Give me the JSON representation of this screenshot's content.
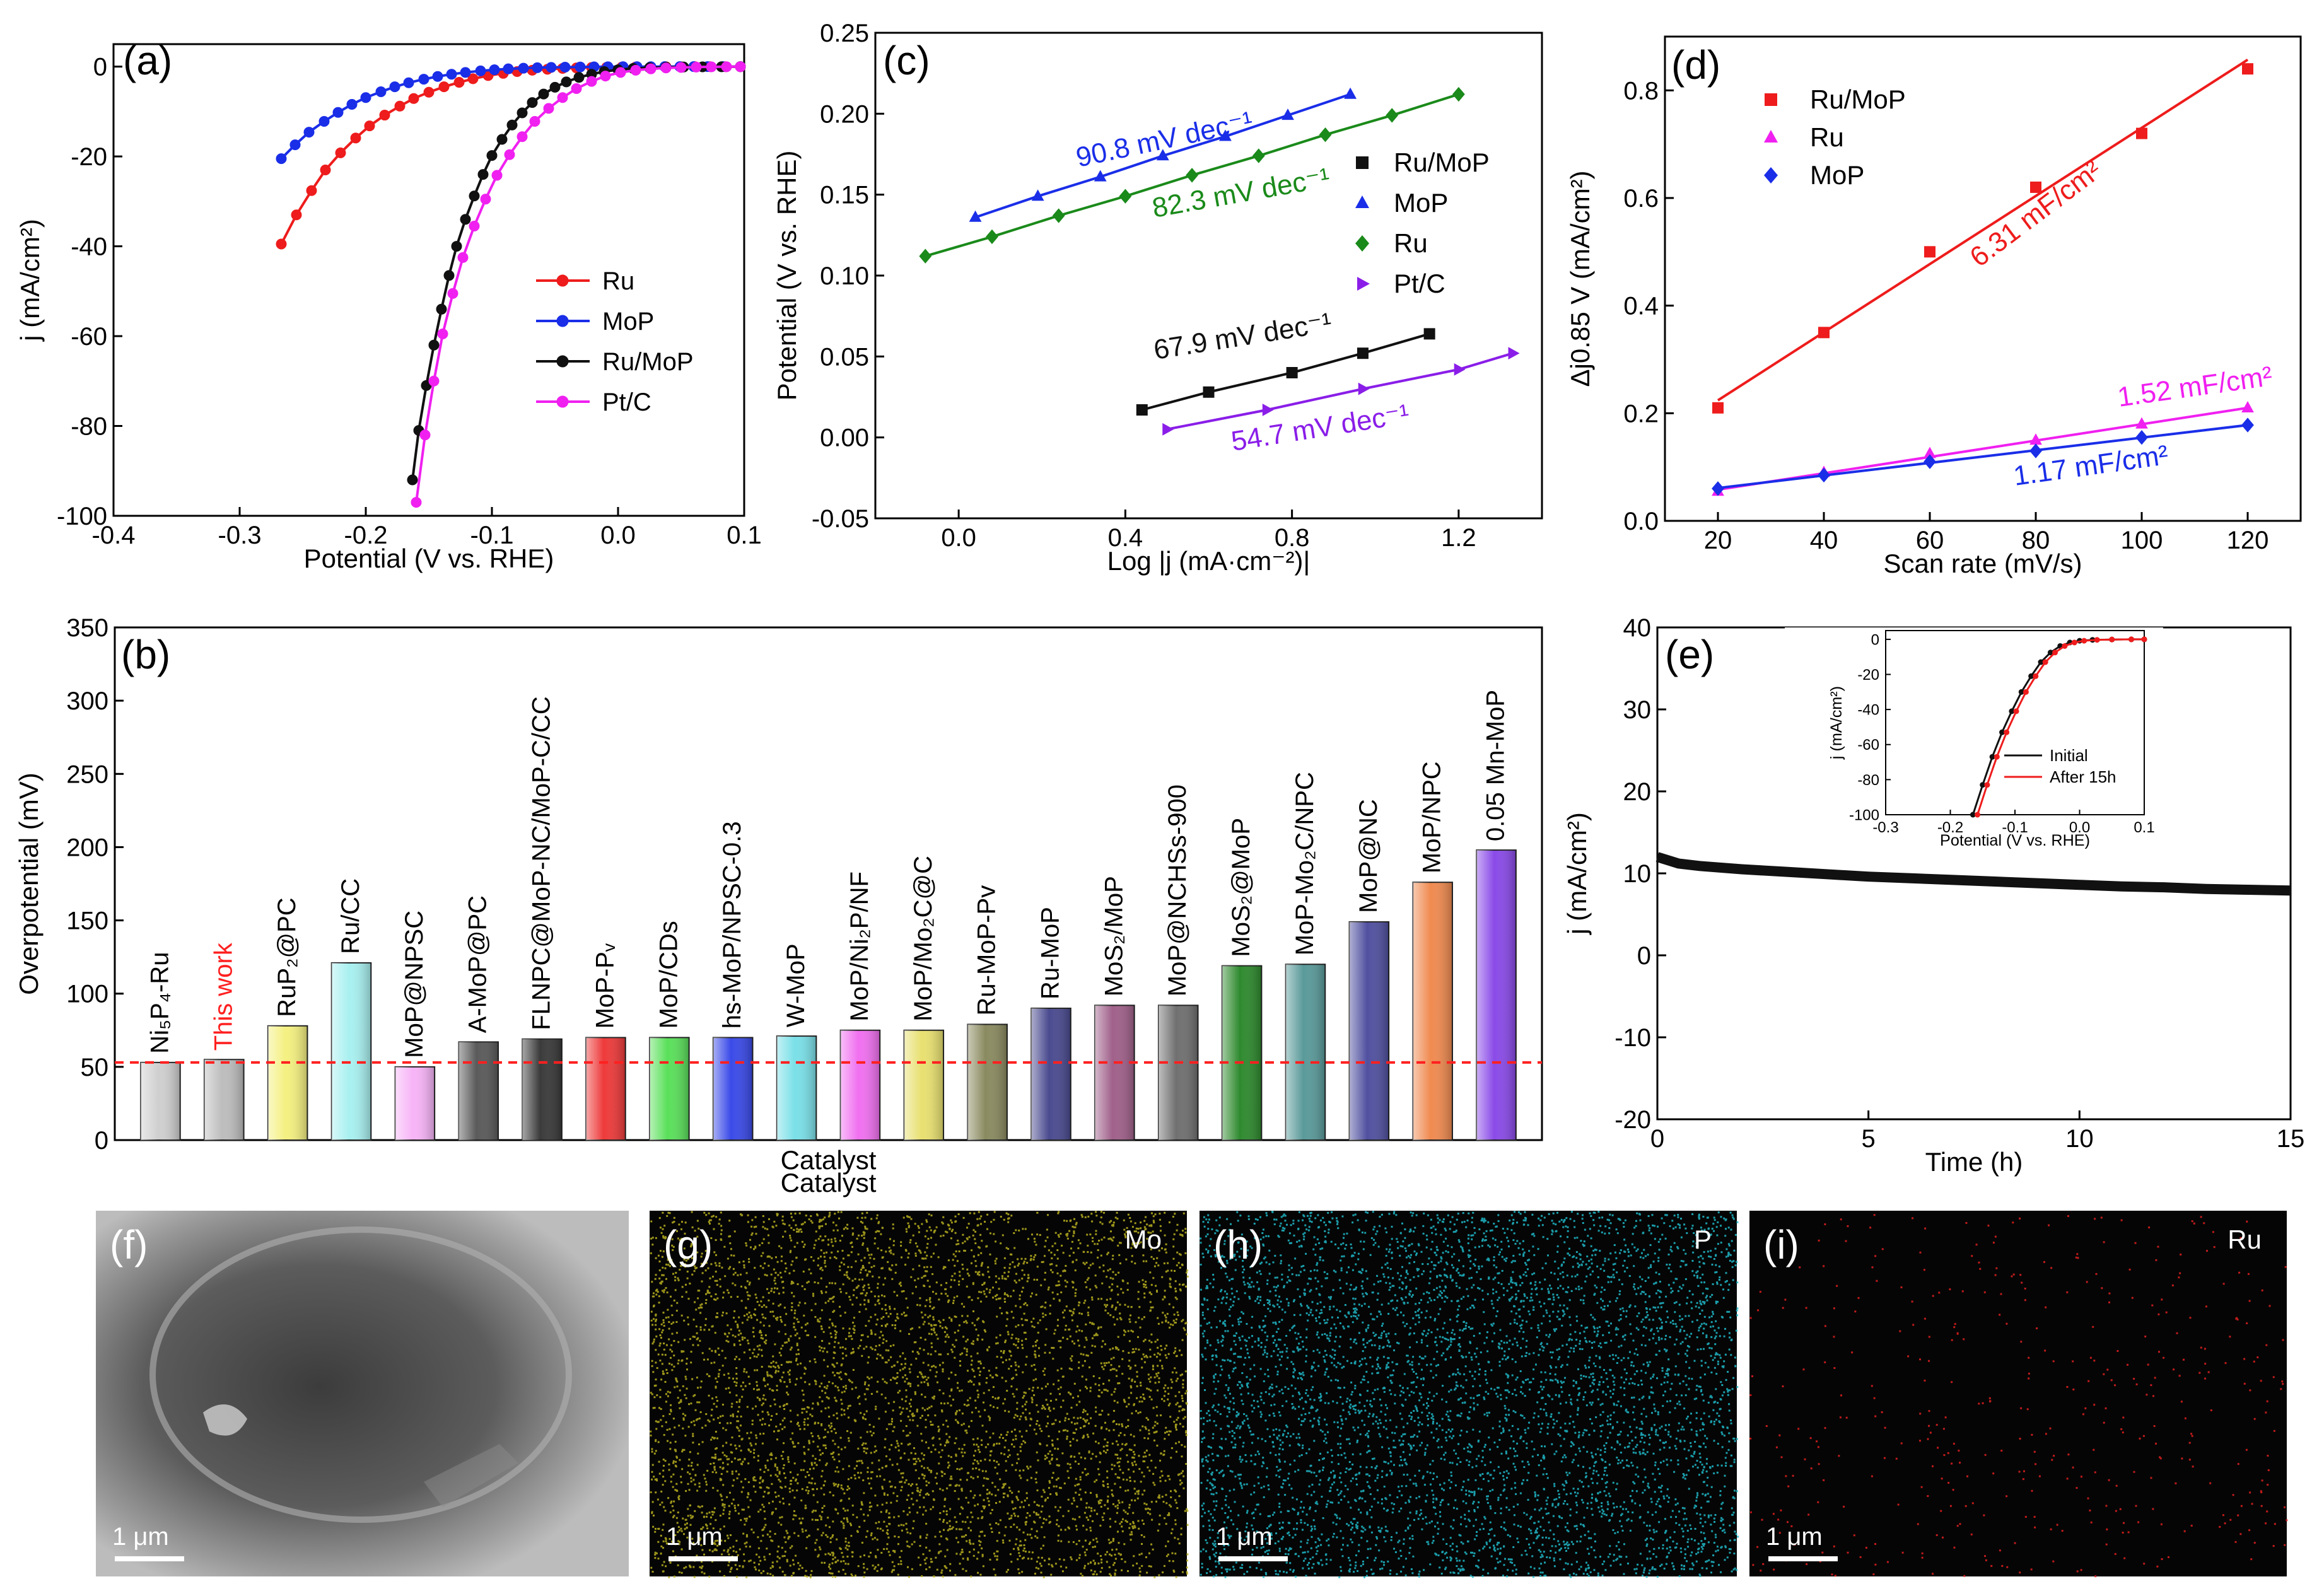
{
  "colors": {
    "red": "#ee1c1c",
    "blue": "#1a2ee8",
    "black": "#111111",
    "magenta": "#f020f0",
    "green": "#1a8a1a",
    "purple": "#8a1ee8",
    "refline": "#ff2020",
    "mo": "#b8b020",
    "p": "#20b8c8",
    "ru": "#e02020"
  },
  "chart_data": [
    {
      "id": "a",
      "type": "line",
      "panel_label": "(a)",
      "xlabel": "Potential (V vs. RHE)",
      "ylabel": "j (mA/cm²)",
      "xlim": [
        -0.4,
        0.1
      ],
      "ylim": [
        -100,
        5
      ],
      "xticks": [
        -0.4,
        -0.3,
        -0.2,
        -0.1,
        0.0,
        0.1
      ],
      "xtick_labels": [
        "-0.4",
        "-0.3",
        "-0.2",
        "-0.1",
        "0.0",
        "0.1"
      ],
      "yticks": [
        0,
        -20,
        -40,
        -60,
        -80,
        -100
      ],
      "ytick_labels": [
        "0",
        "-20",
        "-40",
        "-60",
        "-80",
        "-100"
      ],
      "legend": [
        "Ru",
        "MoP",
        "Ru/MoP",
        "Pt/C"
      ],
      "series": [
        {
          "name": "Ru",
          "color": "#ee1c1c",
          "x": [
            -0.267,
            -0.255,
            -0.243,
            -0.232,
            -0.22,
            -0.208,
            -0.197,
            -0.185,
            -0.173,
            -0.162,
            -0.15,
            -0.138,
            -0.126,
            -0.115,
            -0.103,
            -0.091,
            -0.08,
            -0.068,
            -0.056,
            -0.044,
            -0.033,
            -0.021,
            -0.009,
            0.003,
            0.014,
            0.026,
            0.038,
            0.05,
            0.061,
            0.073,
            0.085,
            0.097
          ],
          "y": [
            -39.5,
            -33.0,
            -27.6,
            -23.0,
            -19.2,
            -15.9,
            -13.2,
            -10.8,
            -8.8,
            -7.1,
            -5.7,
            -4.5,
            -3.5,
            -2.7,
            -2.0,
            -1.5,
            -1.1,
            -0.8,
            -0.6,
            -0.4,
            -0.3,
            -0.2,
            -0.15,
            -0.1,
            -0.08,
            -0.05,
            -0.04,
            -0.03,
            -0.02,
            -0.02,
            -0.01,
            -0.01
          ]
        },
        {
          "name": "MoP",
          "color": "#1a2ee8",
          "x": [
            -0.267,
            -0.256,
            -0.245,
            -0.233,
            -0.222,
            -0.211,
            -0.2,
            -0.188,
            -0.177,
            -0.166,
            -0.154,
            -0.143,
            -0.132,
            -0.121,
            -0.109,
            -0.098,
            -0.087,
            -0.075,
            -0.064,
            -0.053,
            -0.042,
            -0.03,
            -0.019,
            -0.008,
            0.004,
            0.015,
            0.026,
            0.037,
            0.049,
            0.06,
            0.071,
            0.083,
            0.097
          ],
          "y": [
            -20.5,
            -17.4,
            -14.6,
            -12.2,
            -10.2,
            -8.4,
            -6.9,
            -5.6,
            -4.5,
            -3.6,
            -2.8,
            -2.2,
            -1.7,
            -1.3,
            -0.95,
            -0.7,
            -0.5,
            -0.36,
            -0.25,
            -0.17,
            -0.12,
            -0.08,
            -0.05,
            -0.03,
            -0.02,
            -0.01,
            -0.01,
            0,
            0,
            0,
            0,
            0,
            0
          ]
        },
        {
          "name": "Ru/MoP",
          "color": "#111111",
          "x": [
            -0.163,
            -0.158,
            -0.152,
            -0.146,
            -0.14,
            -0.134,
            -0.128,
            -0.121,
            -0.114,
            -0.107,
            -0.1,
            -0.092,
            -0.084,
            -0.076,
            -0.068,
            -0.059,
            -0.05,
            -0.041,
            -0.031,
            -0.021,
            -0.011,
            0.0,
            0.012,
            0.025,
            0.038,
            0.052,
            0.067,
            0.082,
            0.097
          ],
          "y": [
            -92.0,
            -81.0,
            -71.0,
            -62.0,
            -54.0,
            -46.5,
            -40.0,
            -34.0,
            -28.8,
            -24.0,
            -19.8,
            -16.2,
            -13.0,
            -10.3,
            -8.0,
            -6.1,
            -4.6,
            -3.4,
            -2.4,
            -1.7,
            -1.1,
            -0.7,
            -0.4,
            -0.25,
            -0.15,
            -0.09,
            -0.05,
            -0.03,
            -0.01
          ]
        },
        {
          "name": "Pt/C",
          "color": "#f020f0",
          "x": [
            -0.16,
            -0.153,
            -0.146,
            -0.139,
            -0.131,
            -0.123,
            -0.114,
            -0.105,
            -0.096,
            -0.086,
            -0.076,
            -0.066,
            -0.055,
            -0.044,
            -0.033,
            -0.021,
            -0.01,
            0.002,
            0.014,
            0.026,
            0.038,
            0.05,
            0.062,
            0.074,
            0.086,
            0.097
          ],
          "y": [
            -97.0,
            -82.0,
            -70.0,
            -59.5,
            -50.5,
            -42.5,
            -35.5,
            -29.5,
            -24.2,
            -19.6,
            -15.6,
            -12.2,
            -9.3,
            -6.9,
            -4.9,
            -3.3,
            -2.1,
            -1.3,
            -0.8,
            -0.5,
            -0.3,
            -0.2,
            -0.1,
            -0.06,
            -0.03,
            -0.02
          ]
        }
      ]
    },
    {
      "id": "b",
      "type": "bar",
      "panel_label": "(b)",
      "xlabel": "Catalyst",
      "ylabel": "Overpotential (mV)",
      "ylim": [
        0,
        350
      ],
      "yticks": [
        0,
        50,
        100,
        150,
        200,
        250,
        300,
        350
      ],
      "ytick_labels": [
        "0",
        "50",
        "100",
        "150",
        "200",
        "250",
        "300",
        "350"
      ],
      "reference_line": 53,
      "categories": [
        "Ni₅P₄-Ru",
        "This work",
        "RuP₂@PC",
        "Ru/CC",
        "MoP@NPSC",
        "A-MoP@PC",
        "FLNPC@MoP-NC/MoP-C/CC",
        "MoP-Pᵥ",
        "MoP/CDs",
        "hs-MoP/NPSC-0.3",
        "W-MoP",
        "MoP/Ni₂P/NF",
        "MoP/Mo₂C@C",
        "Ru-MoP-Pv",
        "Ru-MoP",
        "MoS₂/MoP",
        "MoP@NCHSs-900",
        "MoS₂@MoP",
        "MoP-Mo₂C/NPC",
        "MoP@NC",
        "MoP/NPC",
        "0.05 Mn-MoP"
      ],
      "values": [
        53,
        55,
        78,
        121,
        50,
        67,
        69,
        70,
        70,
        70,
        71,
        75,
        75,
        79,
        90,
        92,
        92,
        119,
        120,
        149,
        176,
        198
      ],
      "bar_colors": [
        "#cfcfcf",
        "#bdbdbd",
        "#f4f080",
        "#a8f0f0",
        "#f7b4f7",
        "#5a5a5a",
        "#3a3a3a",
        "#ee3a3a",
        "#5ae05a",
        "#3a4ae8",
        "#7ae0e8",
        "#f070f0",
        "#e8e070",
        "#8a8a60",
        "#4a4a90",
        "#a0608a",
        "#707070",
        "#2e8a2e",
        "#5a9a9a",
        "#5050a0",
        "#f08a50",
        "#8a4ae8"
      ],
      "highlight_label_color": "#ff2020"
    },
    {
      "id": "c",
      "type": "line",
      "panel_label": "(c)",
      "xlabel": "Log |j (mA·cm⁻²)|",
      "ylabel": "Potential (V vs. RHE)",
      "xlim": [
        -0.2,
        1.4
      ],
      "ylim": [
        -0.05,
        0.25
      ],
      "xticks": [
        0.0,
        0.4,
        0.8,
        1.2
      ],
      "xtick_labels": [
        "0.0",
        "0.4",
        "0.8",
        "1.2"
      ],
      "yticks": [
        -0.05,
        0.0,
        0.05,
        0.1,
        0.15,
        0.2,
        0.25
      ],
      "ytick_labels": [
        "-0.05",
        "0.00",
        "0.05",
        "0.10",
        "0.15",
        "0.20",
        "0.25"
      ],
      "legend": [
        "Ru/MoP",
        "MoP",
        "Ru",
        "Pt/C"
      ],
      "series": [
        {
          "name": "Ru/MoP",
          "color": "#111111",
          "marker": "square",
          "slope_label": "67.9 mV dec⁻¹",
          "x": [
            0.44,
            0.6,
            0.8,
            0.97,
            1.13
          ],
          "y": [
            0.017,
            0.028,
            0.04,
            0.052,
            0.064
          ]
        },
        {
          "name": "MoP",
          "color": "#1a2ee8",
          "marker": "triangle-up",
          "slope_label": "90.8 mV dec⁻¹",
          "x": [
            0.04,
            0.19,
            0.34,
            0.49,
            0.64,
            0.79,
            0.94
          ],
          "y": [
            0.136,
            0.149,
            0.161,
            0.174,
            0.186,
            0.199,
            0.212
          ]
        },
        {
          "name": "Ru",
          "color": "#1a8a1a",
          "marker": "diamond",
          "slope_label": "82.3 mV dec⁻¹",
          "x": [
            -0.08,
            0.08,
            0.24,
            0.4,
            0.56,
            0.72,
            0.88,
            1.04,
            1.2
          ],
          "y": [
            0.112,
            0.124,
            0.137,
            0.149,
            0.162,
            0.174,
            0.187,
            0.199,
            0.212
          ]
        },
        {
          "name": "Pt/C",
          "color": "#8a1ee8",
          "marker": "triangle-right",
          "slope_label": "54.7 mV dec⁻¹",
          "x": [
            0.5,
            0.74,
            0.97,
            1.2,
            1.33
          ],
          "y": [
            0.005,
            0.017,
            0.03,
            0.042,
            0.052
          ]
        }
      ]
    },
    {
      "id": "d",
      "type": "scatter",
      "panel_label": "(d)",
      "xlabel": "Scan rate (mV/s)",
      "ylabel": "Δj0.85 V (mA/cm²)",
      "xlim": [
        10,
        130
      ],
      "ylim": [
        0,
        0.9
      ],
      "xticks": [
        20,
        40,
        60,
        80,
        100,
        120
      ],
      "xtick_labels": [
        "20",
        "40",
        "60",
        "80",
        "100",
        "120"
      ],
      "yticks": [
        0.0,
        0.2,
        0.4,
        0.6,
        0.8
      ],
      "ytick_labels": [
        "0.0",
        "0.2",
        "0.4",
        "0.6",
        "0.8"
      ],
      "legend": [
        "Ru/MoP",
        "Ru",
        "MoP"
      ],
      "series": [
        {
          "name": "Ru/MoP",
          "color": "#ee1c1c",
          "marker": "square",
          "fit_label": "6.31 mF/cm²",
          "x": [
            20,
            40,
            60,
            80,
            100,
            120
          ],
          "y": [
            0.21,
            0.35,
            0.5,
            0.62,
            0.72,
            0.84
          ],
          "fit": [
            0.224,
            0.857
          ]
        },
        {
          "name": "Ru",
          "color": "#f020f0",
          "marker": "triangle-up",
          "fit_label": "1.52 mF/cm²",
          "x": [
            20,
            40,
            60,
            80,
            100,
            120
          ],
          "y": [
            0.055,
            0.09,
            0.125,
            0.15,
            0.18,
            0.21
          ],
          "fit": [
            0.058,
            0.21
          ]
        },
        {
          "name": "MoP",
          "color": "#1a2ee8",
          "marker": "diamond",
          "fit_label": "1.17 mF/cm²",
          "x": [
            20,
            40,
            60,
            80,
            100,
            120
          ],
          "y": [
            0.06,
            0.085,
            0.11,
            0.13,
            0.155,
            0.178
          ],
          "fit": [
            0.061,
            0.178
          ]
        }
      ]
    },
    {
      "id": "e",
      "type": "line",
      "panel_label": "(e)",
      "xlabel": "Time (h)",
      "ylabel": "j (mA/cm²)",
      "xlim": [
        0,
        15
      ],
      "ylim": [
        -20,
        40
      ],
      "xticks": [
        0,
        5,
        10,
        15
      ],
      "xtick_labels": [
        "0",
        "5",
        "10",
        "15"
      ],
      "yticks": [
        -20,
        -10,
        0,
        10,
        20,
        30,
        40
      ],
      "ytick_labels": [
        "-20",
        "-10",
        "0",
        "10",
        "20",
        "30",
        "40"
      ],
      "series": [
        {
          "name": "stability",
          "color": "#111111",
          "x": [
            0,
            0.5,
            1,
            2,
            3,
            4,
            5,
            6,
            7,
            8,
            9,
            10,
            11,
            12,
            13,
            14,
            15
          ],
          "y": [
            12.0,
            11.2,
            10.9,
            10.5,
            10.2,
            9.9,
            9.6,
            9.4,
            9.2,
            9.0,
            8.8,
            8.6,
            8.4,
            8.3,
            8.1,
            8.0,
            7.9
          ]
        }
      ],
      "inset": {
        "xlabel": "Potential (V vs. RHE)",
        "ylabel": "j (mA/cm²)",
        "xlim": [
          -0.3,
          0.1
        ],
        "ylim": [
          -100,
          5
        ],
        "xticks": [
          -0.3,
          -0.2,
          -0.1,
          0.0,
          0.1
        ],
        "xtick_labels": [
          "-0.3",
          "-0.2",
          "-0.1",
          "0.0",
          "0.1"
        ],
        "yticks": [
          0,
          -20,
          -40,
          -60,
          -80,
          -100
        ],
        "ytick_labels": [
          "0",
          "-20",
          "-40",
          "-60",
          "-80",
          "-100"
        ],
        "legend": [
          "Initial",
          "After 15h"
        ],
        "series": [
          {
            "name": "Initial",
            "color": "#111111",
            "x": [
              -0.165,
              -0.15,
              -0.135,
              -0.12,
              -0.105,
              -0.09,
              -0.075,
              -0.06,
              -0.045,
              -0.03,
              -0.015,
              0.0,
              0.02,
              0.05,
              0.08,
              0.1
            ],
            "y": [
              -100,
              -83,
              -67,
              -53,
              -41,
              -30,
              -21,
              -13,
              -7.5,
              -3.8,
              -1.8,
              -0.8,
              -0.3,
              -0.1,
              0,
              0
            ]
          },
          {
            "name": "After 15h",
            "color": "#ee1c1c",
            "x": [
              -0.158,
              -0.143,
              -0.128,
              -0.113,
              -0.098,
              -0.083,
              -0.068,
              -0.053,
              -0.038,
              -0.023,
              -0.008,
              0.007,
              0.027,
              0.05,
              0.08,
              0.1
            ],
            "y": [
              -100,
              -83,
              -67,
              -53,
              -41,
              -30,
              -21,
              -13,
              -7.5,
              -3.8,
              -1.8,
              -0.8,
              -0.3,
              -0.1,
              0,
              0
            ]
          }
        ]
      }
    }
  ],
  "images": [
    {
      "panel_label": "(f)",
      "element": "",
      "scale_bar": "1 μm",
      "kind": "sem"
    },
    {
      "panel_label": "(g)",
      "element": "Mo",
      "scale_bar": "1 μm",
      "kind": "map",
      "color": "#b8b020",
      "seed": 11
    },
    {
      "panel_label": "(h)",
      "element": "P",
      "scale_bar": "1 μm",
      "kind": "map",
      "color": "#20b8c8",
      "seed": 23
    },
    {
      "panel_label": "(i)",
      "element": "Ru",
      "scale_bar": "1 μm",
      "kind": "map",
      "color": "#e02020",
      "seed": 37
    }
  ]
}
